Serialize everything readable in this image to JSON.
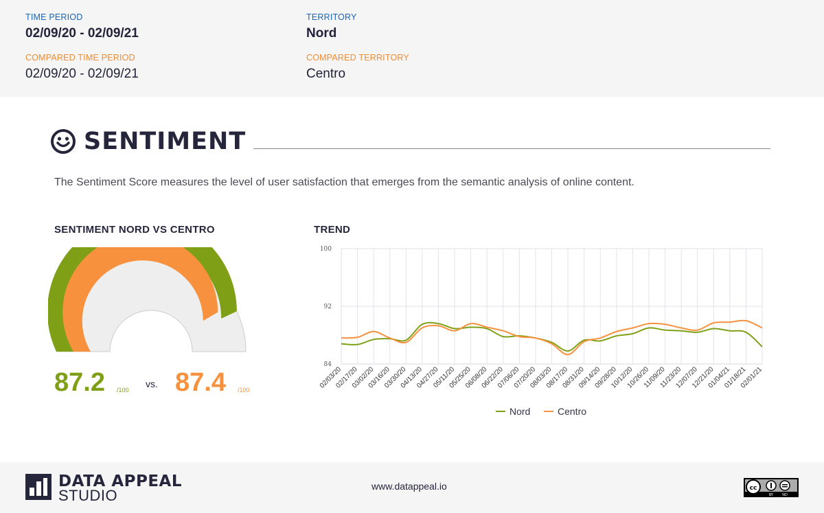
{
  "header": {
    "time_period_label": "TIME PERIOD",
    "time_period_value": "02/09/20 - 02/09/21",
    "compared_time_period_label": "COMPARED TIME PERIOD",
    "compared_time_period_value": "02/09/20 - 02/09/21",
    "territory_label": "TERRITORY",
    "territory_value": "Nord",
    "compared_territory_label": "COMPARED TERRITORY",
    "compared_territory_value": "Centro"
  },
  "section": {
    "title": "SENTIMENT",
    "icon": "smiley-face-icon",
    "description": "The Sentiment Score measures the level of user satisfaction that emerges from the semantic analysis of online content."
  },
  "gauge": {
    "heading": "SENTIMENT NORD VS CENTRO",
    "nord_score": "87.2",
    "centro_score": "87.4",
    "per": "/100",
    "vs": "vs."
  },
  "colors": {
    "nord": "#7fa016",
    "centro": "#f7913d",
    "blue": "#1a63b8",
    "dark": "#25253c"
  },
  "chart_data": {
    "type": "line",
    "title": "TREND",
    "ylim": [
      84,
      100
    ],
    "yticks": [
      "100",
      "92",
      "84"
    ],
    "grid": true,
    "legend": "bottom",
    "x_labels": [
      "02/03/20",
      "02/17/20",
      "03/02/20",
      "03/16/20",
      "03/30/20",
      "04/13/20",
      "04/27/20",
      "05/11/20",
      "05/25/20",
      "06/08/20",
      "06/22/20",
      "07/06/20",
      "07/20/20",
      "08/03/20",
      "08/17/20",
      "08/31/20",
      "09/14/20",
      "09/28/20",
      "10/12/20",
      "10/26/20",
      "11/09/20",
      "11/23/20",
      "12/07/20",
      "12/21/20",
      "01/04/21",
      "01/18/21",
      "02/01/21"
    ],
    "series": [
      {
        "name": "Nord",
        "values": [
          86.8,
          86.7,
          87.4,
          87.5,
          87.3,
          89.5,
          89.6,
          88.9,
          89.1,
          88.9,
          87.8,
          87.9,
          87.6,
          87.0,
          85.8,
          87.3,
          87.2,
          87.9,
          88.2,
          89.0,
          88.7,
          88.6,
          88.4,
          88.9,
          88.6,
          88.4,
          86.4
        ]
      },
      {
        "name": "Centro",
        "values": [
          87.6,
          87.7,
          88.5,
          87.6,
          87.0,
          89.0,
          89.3,
          88.6,
          89.6,
          89.1,
          88.6,
          87.8,
          87.6,
          86.8,
          85.3,
          87.1,
          87.6,
          88.5,
          89.0,
          89.6,
          89.5,
          89.0,
          88.7,
          89.7,
          89.8,
          90.0,
          89.0
        ]
      }
    ]
  },
  "footer": {
    "logo_line1": "DATA APPEAL",
    "logo_line2": "STUDIO",
    "url": "www.datappeal.io",
    "cc_by": "BY",
    "cc_nd": "ND"
  }
}
